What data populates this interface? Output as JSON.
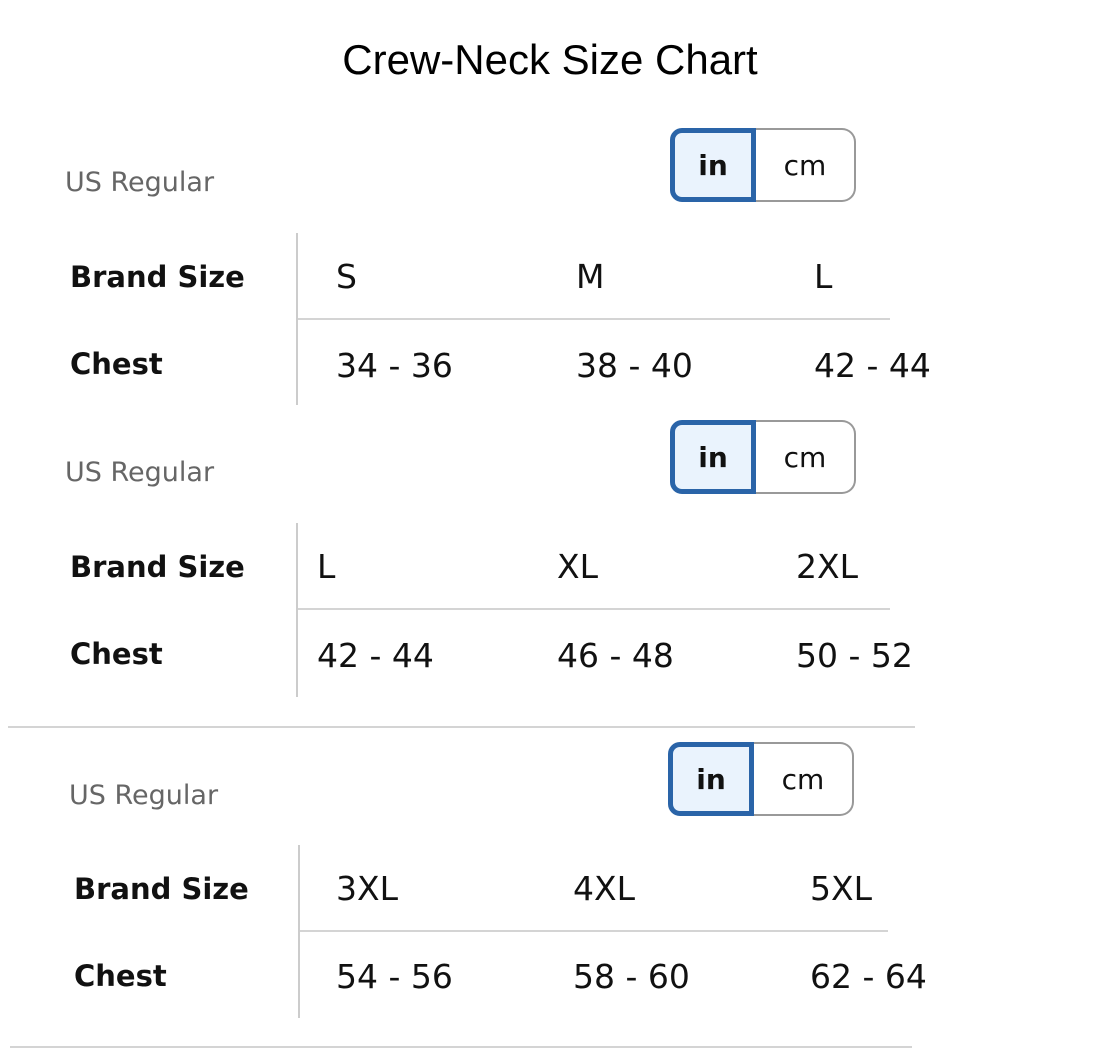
{
  "title": "Crew-Neck Size Chart",
  "accent_color": "#2a64a8",
  "sections": [
    {
      "region": "US Regular",
      "unit_toggle": {
        "options": [
          "in",
          "cm"
        ],
        "selected": "in"
      },
      "row_labels": [
        "Brand Size",
        "Chest"
      ],
      "sizes": [
        "S",
        "M",
        "L"
      ],
      "chest": [
        "34 - 36",
        "38 - 40",
        "42 - 44"
      ]
    },
    {
      "region": "US Regular",
      "unit_toggle": {
        "options": [
          "in",
          "cm"
        ],
        "selected": "in"
      },
      "row_labels": [
        "Brand Size",
        "Chest"
      ],
      "sizes": [
        "L",
        "XL",
        "2XL"
      ],
      "chest": [
        "42 - 44",
        "46 - 48",
        "50 - 52"
      ]
    },
    {
      "region": "US Regular",
      "unit_toggle": {
        "options": [
          "in",
          "cm"
        ],
        "selected": "in"
      },
      "row_labels": [
        "Brand Size",
        "Chest"
      ],
      "sizes": [
        "3XL",
        "4XL",
        "5XL"
      ],
      "chest": [
        "54 - 56",
        "58 - 60",
        "62 - 64"
      ]
    }
  ]
}
